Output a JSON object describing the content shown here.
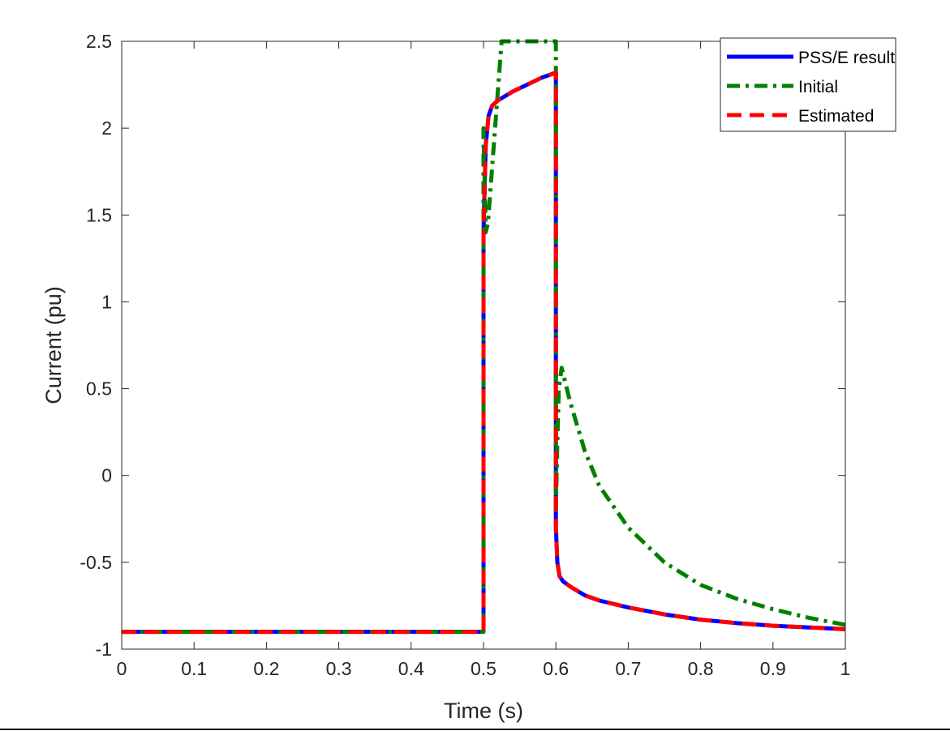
{
  "chart_data": {
    "type": "line",
    "xlabel": "Time (s)",
    "ylabel": "Current (pu)",
    "xlim": [
      0,
      1
    ],
    "ylim": [
      -1,
      2.5
    ],
    "xticks": [
      0,
      0.1,
      0.2,
      0.3,
      0.4,
      0.5,
      0.6,
      0.7,
      0.8,
      0.9,
      1
    ],
    "xtick_labels": [
      "0",
      "0.1",
      "0.2",
      "0.3",
      "0.4",
      "0.5",
      "0.6",
      "0.7",
      "0.8",
      "0.9",
      "1"
    ],
    "yticks": [
      -1,
      -0.5,
      0,
      0.5,
      1,
      1.5,
      2,
      2.5
    ],
    "ytick_labels": [
      "-1",
      "-0.5",
      "0",
      "0.5",
      "1",
      "1.5",
      "2",
      "2.5"
    ],
    "grid": false,
    "legend_position": "top-right",
    "series": [
      {
        "name": "PSS/E result",
        "color": "#0000ff",
        "style": "solid",
        "points": [
          [
            0,
            -0.9
          ],
          [
            0.499,
            -0.9
          ],
          [
            0.5,
            -0.9
          ],
          [
            0.5,
            1.4
          ],
          [
            0.503,
            1.9
          ],
          [
            0.507,
            2.07
          ],
          [
            0.512,
            2.13
          ],
          [
            0.52,
            2.16
          ],
          [
            0.54,
            2.21
          ],
          [
            0.56,
            2.25
          ],
          [
            0.58,
            2.29
          ],
          [
            0.6,
            2.32
          ],
          [
            0.6,
            0.0
          ],
          [
            0.6,
            -0.3
          ],
          [
            0.602,
            -0.5
          ],
          [
            0.605,
            -0.58
          ],
          [
            0.61,
            -0.61
          ],
          [
            0.62,
            -0.64
          ],
          [
            0.64,
            -0.69
          ],
          [
            0.66,
            -0.72
          ],
          [
            0.7,
            -0.76
          ],
          [
            0.75,
            -0.8
          ],
          [
            0.8,
            -0.83
          ],
          [
            0.85,
            -0.85
          ],
          [
            0.9,
            -0.865
          ],
          [
            0.95,
            -0.875
          ],
          [
            1.0,
            -0.885
          ]
        ]
      },
      {
        "name": "Initial",
        "color": "#008000",
        "style": "dashdot",
        "points": [
          [
            0,
            -0.9
          ],
          [
            0.499,
            -0.9
          ],
          [
            0.5,
            -0.9
          ],
          [
            0.5,
            2.0
          ],
          [
            0.503,
            1.4
          ],
          [
            0.506,
            1.45
          ],
          [
            0.525,
            2.5
          ],
          [
            0.6,
            2.5
          ],
          [
            0.6,
            -0.2
          ],
          [
            0.602,
            0.2
          ],
          [
            0.604,
            0.5
          ],
          [
            0.608,
            0.62
          ],
          [
            0.62,
            0.42
          ],
          [
            0.64,
            0.14
          ],
          [
            0.66,
            -0.06
          ],
          [
            0.7,
            -0.3
          ],
          [
            0.75,
            -0.5
          ],
          [
            0.8,
            -0.63
          ],
          [
            0.85,
            -0.71
          ],
          [
            0.9,
            -0.77
          ],
          [
            0.95,
            -0.82
          ],
          [
            1.0,
            -0.86
          ]
        ]
      },
      {
        "name": "Estimated",
        "color": "#ff0000",
        "style": "dashed",
        "points": [
          [
            0,
            -0.9
          ],
          [
            0.499,
            -0.9
          ],
          [
            0.5,
            -0.9
          ],
          [
            0.5,
            1.4
          ],
          [
            0.503,
            1.9
          ],
          [
            0.507,
            2.07
          ],
          [
            0.512,
            2.13
          ],
          [
            0.52,
            2.16
          ],
          [
            0.54,
            2.21
          ],
          [
            0.56,
            2.25
          ],
          [
            0.58,
            2.29
          ],
          [
            0.6,
            2.32
          ],
          [
            0.6,
            0.0
          ],
          [
            0.6,
            -0.3
          ],
          [
            0.602,
            -0.5
          ],
          [
            0.605,
            -0.58
          ],
          [
            0.61,
            -0.61
          ],
          [
            0.62,
            -0.64
          ],
          [
            0.64,
            -0.69
          ],
          [
            0.66,
            -0.72
          ],
          [
            0.7,
            -0.76
          ],
          [
            0.75,
            -0.8
          ],
          [
            0.8,
            -0.83
          ],
          [
            0.85,
            -0.85
          ],
          [
            0.9,
            -0.865
          ],
          [
            0.95,
            -0.875
          ],
          [
            1.0,
            -0.885
          ]
        ]
      }
    ]
  }
}
